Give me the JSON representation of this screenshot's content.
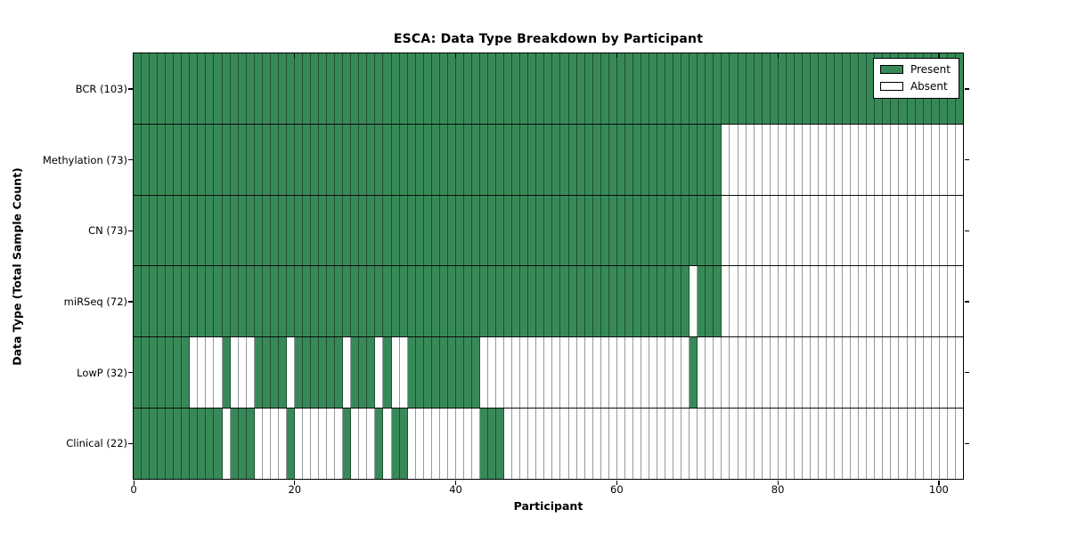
{
  "chart_data": {
    "type": "heatmap",
    "title": "ESCA: Data Type Breakdown by Participant",
    "xlabel": "Participant",
    "ylabel": "Data Type (Total Sample Count)",
    "x_ticks": [
      0,
      20,
      40,
      60,
      80,
      100
    ],
    "x_range": [
      0,
      103
    ],
    "n_participants": 103,
    "grid_lines": false,
    "legend_position": "upper right",
    "colors": {
      "present": "#378a58",
      "absent": "#ffffff"
    },
    "legend": [
      {
        "label": "Present",
        "color": "#378a58"
      },
      {
        "label": "Absent",
        "color": "#ffffff"
      }
    ],
    "rows": [
      {
        "name": "BCR",
        "label": "BCR (103)",
        "total": 103,
        "present_ranges": [
          [
            0,
            102
          ]
        ]
      },
      {
        "name": "Methylation",
        "label": "Methylation (73)",
        "total": 73,
        "present_ranges": [
          [
            0,
            72
          ]
        ]
      },
      {
        "name": "CN",
        "label": "CN (73)",
        "total": 73,
        "present_ranges": [
          [
            0,
            72
          ]
        ]
      },
      {
        "name": "miRSeq",
        "label": "miRSeq (72)",
        "total": 72,
        "present_ranges": [
          [
            0,
            68
          ],
          [
            70,
            72
          ]
        ]
      },
      {
        "name": "LowP",
        "label": "LowP (32)",
        "total": 32,
        "present_ranges": [
          [
            0,
            6
          ],
          [
            11,
            11
          ],
          [
            15,
            18
          ],
          [
            20,
            25
          ],
          [
            27,
            29
          ],
          [
            31,
            31
          ],
          [
            34,
            42
          ],
          [
            69,
            69
          ]
        ]
      },
      {
        "name": "Clinical",
        "label": "Clinical (22)",
        "total": 22,
        "present_ranges": [
          [
            0,
            10
          ],
          [
            12,
            14
          ],
          [
            19,
            19
          ],
          [
            26,
            26
          ],
          [
            30,
            30
          ],
          [
            32,
            33
          ],
          [
            43,
            45
          ]
        ]
      }
    ]
  }
}
